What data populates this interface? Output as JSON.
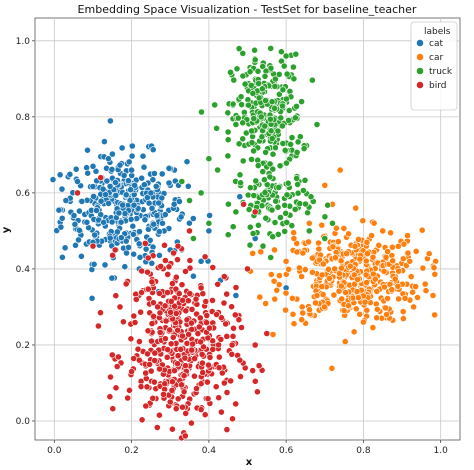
{
  "chart_data": {
    "type": "scatter",
    "title": "Embedding Space Visualization - TestSet for baseline_teacher",
    "xlabel": "x",
    "ylabel": "y",
    "xlim": [
      -0.05,
      1.05
    ],
    "ylim": [
      -0.05,
      1.06
    ],
    "xticks": [
      "0.0",
      "0.2",
      "0.4",
      "0.6",
      "0.8",
      "1.0"
    ],
    "yticks": [
      "0.0",
      "0.2",
      "0.4",
      "0.6",
      "0.8",
      "1.0"
    ],
    "grid": true,
    "legend": {
      "title": "labels",
      "placement": "top-right"
    },
    "series": [
      {
        "name": "cat",
        "color": "#1f77b4",
        "clusters": [
          {
            "cx": 0.18,
            "cy": 0.56,
            "sx": 0.08,
            "sy": 0.07,
            "n": 380
          }
        ],
        "points": [
          [
            0.02,
            0.61
          ],
          [
            0.03,
            0.58
          ],
          [
            0.06,
            0.63
          ],
          [
            0.1,
            0.67
          ],
          [
            0.14,
            0.69
          ],
          [
            0.2,
            0.66
          ],
          [
            0.25,
            0.6
          ],
          [
            0.28,
            0.52
          ],
          [
            0.3,
            0.45
          ],
          [
            0.33,
            0.45
          ],
          [
            0.38,
            0.42
          ],
          [
            0.43,
            0.37
          ],
          [
            0.27,
            0.34
          ],
          [
            0.31,
            0.3
          ],
          [
            0.22,
            0.4
          ],
          [
            0.1,
            0.47
          ],
          [
            0.16,
            0.45
          ],
          [
            0.48,
            0.59
          ],
          [
            0.52,
            0.48
          ],
          [
            0.4,
            0.5
          ],
          [
            0.6,
            0.35
          ],
          [
            0.47,
            0.33
          ]
        ]
      },
      {
        "name": "car",
        "color": "#ff7f0e",
        "clusters": [
          {
            "cx": 0.77,
            "cy": 0.38,
            "sx": 0.09,
            "sy": 0.06,
            "n": 420
          }
        ],
        "points": [
          [
            0.62,
            0.48
          ],
          [
            0.66,
            0.52
          ],
          [
            0.72,
            0.57
          ],
          [
            0.78,
            0.56
          ],
          [
            0.85,
            0.5
          ],
          [
            0.92,
            0.42
          ],
          [
            0.96,
            0.36
          ],
          [
            0.98,
            0.33
          ],
          [
            0.93,
            0.3
          ],
          [
            0.86,
            0.28
          ],
          [
            0.8,
            0.26
          ],
          [
            0.75,
            0.29
          ],
          [
            0.68,
            0.33
          ],
          [
            0.64,
            0.38
          ],
          [
            0.6,
            0.42
          ],
          [
            0.57,
            0.45
          ],
          [
            0.7,
            0.62
          ],
          [
            0.74,
            0.66
          ]
        ]
      },
      {
        "name": "truck",
        "color": "#2ca02c",
        "clusters": [
          {
            "cx": 0.55,
            "cy": 0.8,
            "sx": 0.045,
            "sy": 0.08,
            "n": 280
          },
          {
            "cx": 0.57,
            "cy": 0.58,
            "sx": 0.05,
            "sy": 0.04,
            "n": 100
          }
        ],
        "points": [
          [
            0.52,
            0.95
          ],
          [
            0.56,
            0.98
          ],
          [
            0.6,
            0.96
          ],
          [
            0.62,
            0.9
          ],
          [
            0.64,
            0.84
          ],
          [
            0.47,
            0.78
          ],
          [
            0.45,
            0.74
          ],
          [
            0.42,
            0.77
          ],
          [
            0.4,
            0.69
          ],
          [
            0.68,
            0.78
          ],
          [
            0.72,
            0.52
          ],
          [
            0.7,
            0.48
          ],
          [
            0.66,
            0.5
          ],
          [
            0.38,
            0.6
          ],
          [
            0.33,
            0.63
          ],
          [
            0.35,
            0.58
          ],
          [
            0.47,
            0.55
          ],
          [
            0.4,
            0.52
          ],
          [
            0.45,
            0.49
          ],
          [
            0.36,
            0.48
          ],
          [
            0.54,
            0.46
          ],
          [
            0.56,
            0.43
          ]
        ]
      },
      {
        "name": "bird",
        "color": "#d62728",
        "clusters": [
          {
            "cx": 0.33,
            "cy": 0.17,
            "sx": 0.07,
            "sy": 0.09,
            "n": 380
          },
          {
            "cx": 0.28,
            "cy": 0.34,
            "sx": 0.05,
            "sy": 0.06,
            "n": 80
          }
        ],
        "points": [
          [
            0.22,
            0.16
          ],
          [
            0.2,
            0.13
          ],
          [
            0.24,
            0.09
          ],
          [
            0.3,
            0.05
          ],
          [
            0.34,
            0.02
          ],
          [
            0.38,
            0.03
          ],
          [
            0.44,
            0.1
          ],
          [
            0.48,
            0.16
          ],
          [
            0.52,
            0.2
          ],
          [
            0.55,
            0.23
          ],
          [
            0.42,
            0.28
          ],
          [
            0.38,
            0.35
          ],
          [
            0.32,
            0.46
          ],
          [
            0.35,
            0.5
          ],
          [
            0.1,
            0.46
          ],
          [
            0.06,
            0.6
          ],
          [
            0.12,
            0.64
          ],
          [
            0.17,
            0.3
          ],
          [
            0.44,
            0.38
          ],
          [
            0.5,
            0.4
          ],
          [
            0.52,
            0.55
          ],
          [
            0.49,
            0.57
          ]
        ]
      }
    ]
  }
}
